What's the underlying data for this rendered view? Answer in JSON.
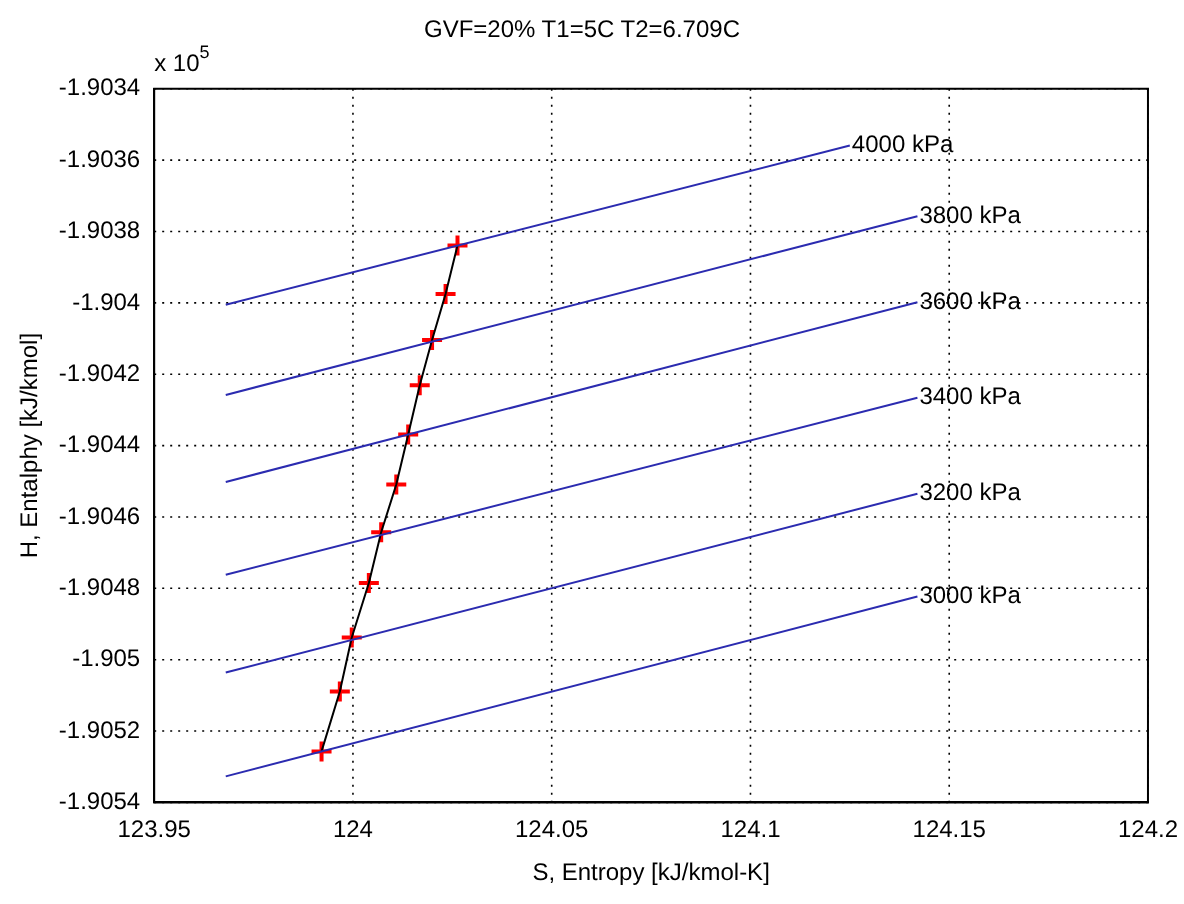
{
  "chart_data": {
    "type": "line",
    "title": "GVF=20% T1=5C T2=6.709C",
    "xlabel": "S, Entropy [kJ/kmol-K]",
    "ylabel": "H, Entalphy [kJ/kmol]",
    "xlim": [
      123.95,
      124.2
    ],
    "xticks": [
      123.95,
      124,
      124.05,
      124.1,
      124.15,
      124.2
    ],
    "ylim": [
      -1.9054,
      -1.9034
    ],
    "yticks": [
      -1.9054,
      -1.9052,
      -1.905,
      -1.9048,
      -1.9046,
      -1.9044,
      -1.9042,
      -1.904,
      -1.9038,
      -1.9036,
      -1.9034
    ],
    "grid": true,
    "legend": false,
    "line_style": "solid",
    "marker": "none",
    "series": [
      {
        "name": "4000 kPa",
        "color": "#2b2bb0",
        "x": [
          123.968,
          124.125
        ],
        "values": [
          -1.904005,
          -1.903559
        ]
      },
      {
        "name": "3800 kPa",
        "color": "#2b2bb0",
        "x": [
          123.968,
          124.142
        ],
        "values": [
          -1.904258,
          -1.903757
        ]
      },
      {
        "name": "3600 kPa",
        "color": "#2b2bb0",
        "x": [
          123.968,
          124.142
        ],
        "values": [
          -1.904502,
          -1.903998
        ]
      },
      {
        "name": "3400 kPa",
        "color": "#2b2bb0",
        "x": [
          123.968,
          124.142
        ],
        "values": [
          -1.904762,
          -1.904266
        ]
      },
      {
        "name": "3200 kPa",
        "color": "#2b2bb0",
        "x": [
          123.968,
          124.142
        ],
        "values": [
          -1.905036,
          -1.904535
        ]
      },
      {
        "name": "3000 kPa",
        "color": "#2b2bb0",
        "x": [
          123.968,
          124.142
        ],
        "values": [
          -1.905327,
          -1.904823
        ]
      },
      {
        "color": "#000000",
        "x": [
          124.0263,
          124.0233,
          124.0199,
          124.0168,
          124.0139,
          124.0109,
          124.0071,
          124.004,
          123.9997,
          123.9967,
          123.9921
        ],
        "values": [
          -1.903839,
          -1.903975,
          -1.904104,
          -1.904231,
          -1.904369,
          -1.904509,
          -1.904643,
          -1.904785,
          -1.904938,
          -1.905089,
          -1.905257
        ]
      },
      {
        "type": "scatter",
        "marker": "cross",
        "color": "#ff0000",
        "x": [
          124.0263,
          124.0233,
          124.0199,
          124.0168,
          124.0139,
          124.0109,
          124.0071,
          124.004,
          123.9997,
          123.9967,
          123.9921
        ],
        "values": [
          -1.903839,
          -1.903975,
          -1.904104,
          -1.904231,
          -1.904369,
          -1.904509,
          -1.904643,
          -1.904785,
          -1.904938,
          -1.905089,
          -1.905257
        ]
      }
    ],
    "annotations": [
      "x 10$^{5}$"
    ]
  }
}
